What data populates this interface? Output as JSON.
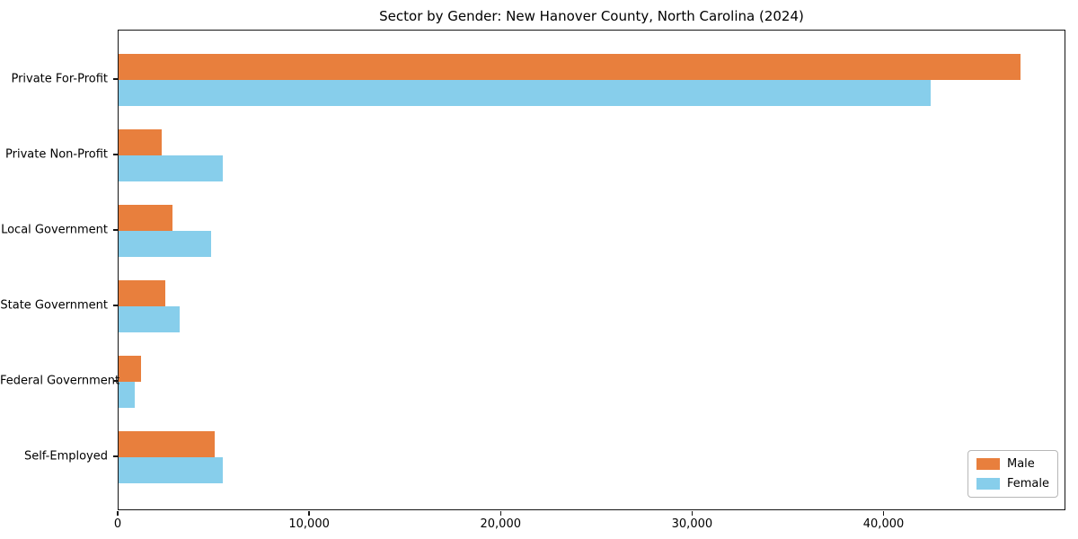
{
  "chart_data": {
    "type": "bar",
    "orientation": "horizontal",
    "title": "Sector by Gender: New Hanover County, North Carolina (2024)",
    "categories": [
      "Private For-Profit",
      "Private Non-Profit",
      "Local Government",
      "State Government",
      "Federal Government",
      "Self-Employed"
    ],
    "series": [
      {
        "name": "Male",
        "color": "#e87f3d",
        "values": [
          47100,
          2250,
          2800,
          2450,
          1150,
          5000
        ]
      },
      {
        "name": "Female",
        "color": "#87ceeb",
        "values": [
          42400,
          5450,
          4850,
          3200,
          850,
          5450
        ]
      }
    ],
    "xlabel": "",
    "ylabel": "",
    "xlim": [
      0,
      49500
    ],
    "x_ticks": [
      0,
      10000,
      20000,
      30000,
      40000
    ],
    "x_tick_labels": [
      "0",
      "10,000",
      "20,000",
      "30,000",
      "40,000"
    ],
    "grid": false,
    "legend": {
      "position": "lower right",
      "entries": [
        "Male",
        "Female"
      ]
    }
  }
}
